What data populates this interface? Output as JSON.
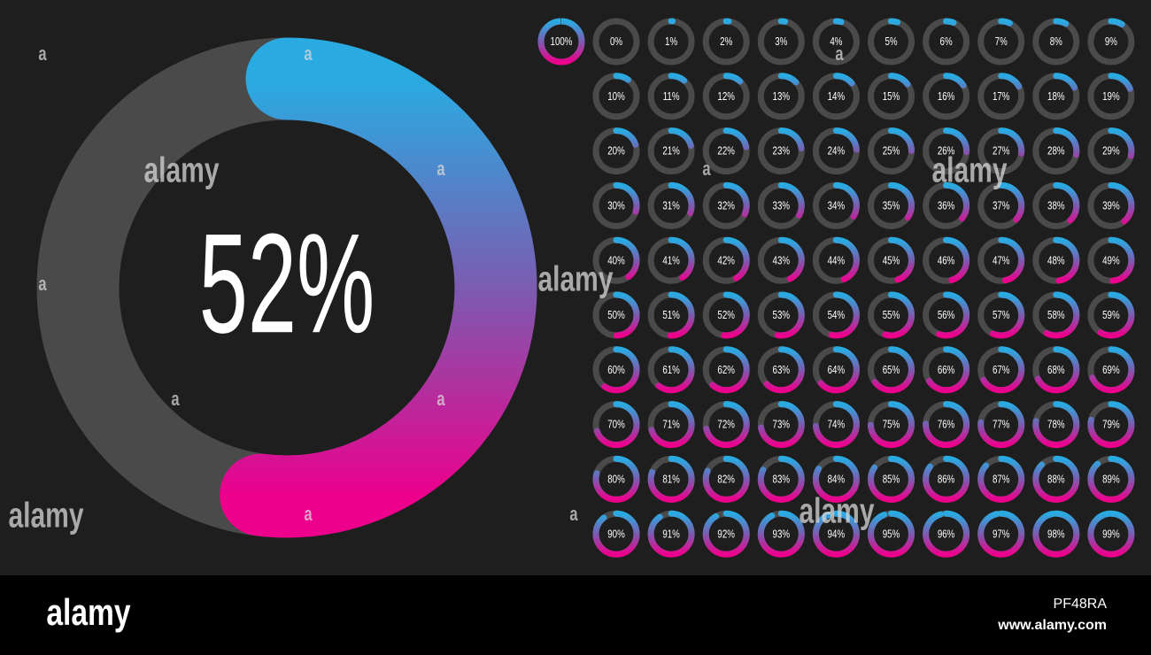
{
  "main_gauge": {
    "value": 52,
    "label": "52%"
  },
  "gauges": [
    {
      "value": 100,
      "label": "100%"
    },
    {
      "value": 0,
      "label": "0%"
    },
    {
      "value": 1,
      "label": "1%"
    },
    {
      "value": 2,
      "label": "2%"
    },
    {
      "value": 3,
      "label": "3%"
    },
    {
      "value": 4,
      "label": "4%"
    },
    {
      "value": 5,
      "label": "5%"
    },
    {
      "value": 6,
      "label": "6%"
    },
    {
      "value": 7,
      "label": "7%"
    },
    {
      "value": 8,
      "label": "8%"
    },
    {
      "value": 9,
      "label": "9%"
    },
    {
      "value": 10,
      "label": "10%"
    },
    {
      "value": 11,
      "label": "11%"
    },
    {
      "value": 12,
      "label": "12%"
    },
    {
      "value": 13,
      "label": "13%"
    },
    {
      "value": 14,
      "label": "14%"
    },
    {
      "value": 15,
      "label": "15%"
    },
    {
      "value": 16,
      "label": "16%"
    },
    {
      "value": 17,
      "label": "17%"
    },
    {
      "value": 18,
      "label": "18%"
    },
    {
      "value": 19,
      "label": "19%"
    },
    {
      "value": 20,
      "label": "20%"
    },
    {
      "value": 21,
      "label": "21%"
    },
    {
      "value": 22,
      "label": "22%"
    },
    {
      "value": 23,
      "label": "23%"
    },
    {
      "value": 24,
      "label": "24%"
    },
    {
      "value": 25,
      "label": "25%"
    },
    {
      "value": 26,
      "label": "26%"
    },
    {
      "value": 27,
      "label": "27%"
    },
    {
      "value": 28,
      "label": "28%"
    },
    {
      "value": 29,
      "label": "29%"
    },
    {
      "value": 30,
      "label": "30%"
    },
    {
      "value": 31,
      "label": "31%"
    },
    {
      "value": 32,
      "label": "32%"
    },
    {
      "value": 33,
      "label": "33%"
    },
    {
      "value": 34,
      "label": "34%"
    },
    {
      "value": 35,
      "label": "35%"
    },
    {
      "value": 36,
      "label": "36%"
    },
    {
      "value": 37,
      "label": "37%"
    },
    {
      "value": 38,
      "label": "38%"
    },
    {
      "value": 39,
      "label": "39%"
    },
    {
      "value": 40,
      "label": "40%"
    },
    {
      "value": 41,
      "label": "41%"
    },
    {
      "value": 42,
      "label": "42%"
    },
    {
      "value": 43,
      "label": "43%"
    },
    {
      "value": 44,
      "label": "44%"
    },
    {
      "value": 45,
      "label": "45%"
    },
    {
      "value": 46,
      "label": "46%"
    },
    {
      "value": 47,
      "label": "47%"
    },
    {
      "value": 48,
      "label": "48%"
    },
    {
      "value": 49,
      "label": "49%"
    },
    {
      "value": 50,
      "label": "50%"
    },
    {
      "value": 51,
      "label": "51%"
    },
    {
      "value": 52,
      "label": "52%"
    },
    {
      "value": 53,
      "label": "53%"
    },
    {
      "value": 54,
      "label": "54%"
    },
    {
      "value": 55,
      "label": "55%"
    },
    {
      "value": 56,
      "label": "56%"
    },
    {
      "value": 57,
      "label": "57%"
    },
    {
      "value": 58,
      "label": "58%"
    },
    {
      "value": 59,
      "label": "59%"
    },
    {
      "value": 60,
      "label": "60%"
    },
    {
      "value": 61,
      "label": "61%"
    },
    {
      "value": 62,
      "label": "62%"
    },
    {
      "value": 63,
      "label": "63%"
    },
    {
      "value": 64,
      "label": "64%"
    },
    {
      "value": 65,
      "label": "65%"
    },
    {
      "value": 66,
      "label": "66%"
    },
    {
      "value": 67,
      "label": "67%"
    },
    {
      "value": 68,
      "label": "68%"
    },
    {
      "value": 69,
      "label": "69%"
    },
    {
      "value": 70,
      "label": "70%"
    },
    {
      "value": 71,
      "label": "71%"
    },
    {
      "value": 72,
      "label": "72%"
    },
    {
      "value": 73,
      "label": "73%"
    },
    {
      "value": 74,
      "label": "74%"
    },
    {
      "value": 75,
      "label": "75%"
    },
    {
      "value": 76,
      "label": "76%"
    },
    {
      "value": 77,
      "label": "77%"
    },
    {
      "value": 78,
      "label": "78%"
    },
    {
      "value": 79,
      "label": "79%"
    },
    {
      "value": 80,
      "label": "80%"
    },
    {
      "value": 81,
      "label": "81%"
    },
    {
      "value": 82,
      "label": "82%"
    },
    {
      "value": 83,
      "label": "83%"
    },
    {
      "value": 84,
      "label": "84%"
    },
    {
      "value": 85,
      "label": "85%"
    },
    {
      "value": 86,
      "label": "86%"
    },
    {
      "value": 87,
      "label": "87%"
    },
    {
      "value": 88,
      "label": "88%"
    },
    {
      "value": 89,
      "label": "89%"
    },
    {
      "value": 90,
      "label": "90%"
    },
    {
      "value": 91,
      "label": "91%"
    },
    {
      "value": 92,
      "label": "92%"
    },
    {
      "value": 93,
      "label": "93%"
    },
    {
      "value": 94,
      "label": "94%"
    },
    {
      "value": 95,
      "label": "95%"
    },
    {
      "value": 96,
      "label": "96%"
    },
    {
      "value": 97,
      "label": "97%"
    },
    {
      "value": 98,
      "label": "98%"
    },
    {
      "value": 99,
      "label": "99%"
    }
  ],
  "watermarks": [
    "alamy",
    "alamy",
    "alamy",
    "alamy",
    "alamy",
    "a",
    "a",
    "a",
    "a",
    "a",
    "a",
    "a",
    "a",
    "a",
    "a"
  ],
  "footer": {
    "logo": "alamy",
    "image_id": "PF48RA",
    "url": "www.alamy.com"
  }
}
